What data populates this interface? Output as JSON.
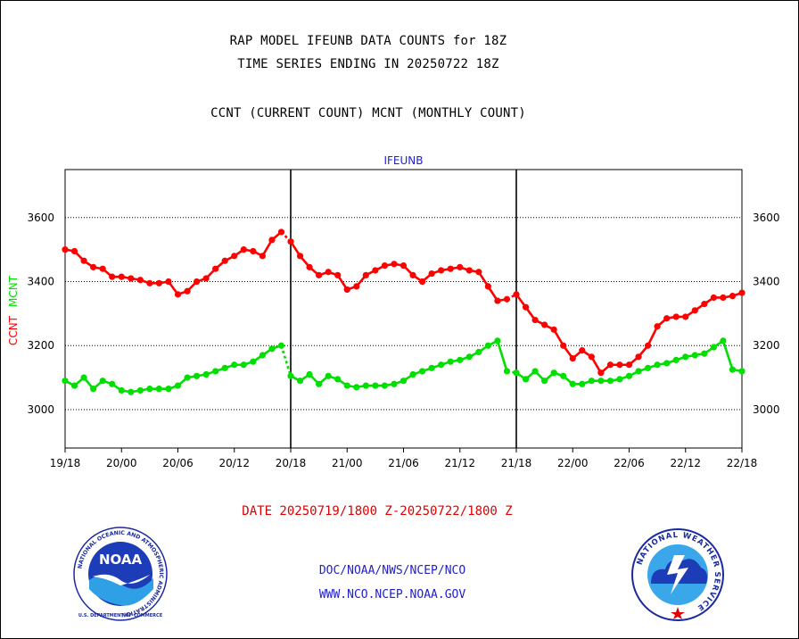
{
  "header": {
    "title_line1": "RAP MODEL IFEUNB DATA COUNTS for 18Z",
    "title_line2": "TIME SERIES ENDING IN 20250722 18Z",
    "subtitle": "CCNT (CURRENT COUNT) MCNT (MONTHLY COUNT)"
  },
  "footer": {
    "date_range": "DATE 20250719/1800 Z-20250722/1800 Z",
    "line1": "DOC/NOAA/NWS/NCEP/NCO",
    "line2": "WWW.NCO.NCEP.NOAA.GOV"
  },
  "logos": {
    "left": "noaa-logo",
    "left_label": "NOAA",
    "left_ring_text": "NATIONAL OCEANIC AND ATMOSPHERIC ADMINISTRATION",
    "left_bottom_text": "U.S. DEPARTMENT OF COMMERCE",
    "right": "nws-logo",
    "right_ring_text": "NATIONAL WEATHER SERVICE"
  },
  "colors": {
    "ccnt": "#ff0000",
    "mcnt": "#00e000",
    "footer_text": "#1e1ecc"
  },
  "chart_data": {
    "type": "line",
    "title": "IFEUNB",
    "ylabel_ccnt": "CCNT",
    "ylabel_mcnt": "MCNT",
    "ylim": [
      2880,
      3750
    ],
    "yticks": [
      3000,
      3200,
      3400,
      3600
    ],
    "grid": true,
    "xlim": [
      0,
      72
    ],
    "xticks": [
      {
        "x": 0,
        "label": "19/18"
      },
      {
        "x": 6,
        "label": "20/00"
      },
      {
        "x": 12,
        "label": "20/06"
      },
      {
        "x": 18,
        "label": "20/12"
      },
      {
        "x": 24,
        "label": "20/18"
      },
      {
        "x": 30,
        "label": "21/00"
      },
      {
        "x": 36,
        "label": "21/06"
      },
      {
        "x": 42,
        "label": "21/12"
      },
      {
        "x": 48,
        "label": "21/18"
      },
      {
        "x": 54,
        "label": "22/00"
      },
      {
        "x": 60,
        "label": "22/06"
      },
      {
        "x": 66,
        "label": "22/12"
      },
      {
        "x": 72,
        "label": "22/18"
      }
    ],
    "day_separators": [
      24,
      48
    ],
    "series": [
      {
        "name": "CCNT",
        "color": "#ff0000",
        "x": [
          0,
          1,
          2,
          3,
          4,
          5,
          6,
          7,
          8,
          9,
          10,
          11,
          12,
          13,
          14,
          15,
          16,
          17,
          18,
          19,
          20,
          21,
          22,
          23,
          24,
          25,
          26,
          27,
          28,
          29,
          30,
          31,
          32,
          33,
          34,
          35,
          36,
          37,
          38,
          39,
          40,
          41,
          42,
          43,
          44,
          45,
          46,
          47,
          48,
          49,
          50,
          51,
          52,
          53,
          54,
          55,
          56,
          57,
          58,
          59,
          60,
          61,
          62,
          63,
          64,
          65,
          66,
          67,
          68,
          69,
          70,
          71,
          72
        ],
        "values": [
          3500,
          3495,
          3465,
          3445,
          3440,
          3415,
          3415,
          3410,
          3405,
          3395,
          3395,
          3400,
          3360,
          3370,
          3400,
          3410,
          3440,
          3465,
          3480,
          3500,
          3495,
          3480,
          3530,
          3555,
          3525,
          3480,
          3445,
          3420,
          3430,
          3420,
          3375,
          3385,
          3420,
          3435,
          3450,
          3455,
          3450,
          3420,
          3400,
          3425,
          3435,
          3440,
          3445,
          3435,
          3430,
          3385,
          3340,
          3345,
          3360,
          3320,
          3280,
          3265,
          3250,
          3200,
          3160,
          3185,
          3165,
          3115,
          3140,
          3140,
          3140,
          3165,
          3200,
          3260,
          3285,
          3290,
          3290,
          3310,
          3330,
          3350,
          3350,
          3355,
          3365
        ]
      },
      {
        "name": "MCNT",
        "color": "#00e000",
        "x": [
          0,
          1,
          2,
          3,
          4,
          5,
          6,
          7,
          8,
          9,
          10,
          11,
          12,
          13,
          14,
          15,
          16,
          17,
          18,
          19,
          20,
          21,
          22,
          23,
          24,
          25,
          26,
          27,
          28,
          29,
          30,
          31,
          32,
          33,
          34,
          35,
          36,
          37,
          38,
          39,
          40,
          41,
          42,
          43,
          44,
          45,
          46,
          47,
          48,
          49,
          50,
          51,
          52,
          53,
          54,
          55,
          56,
          57,
          58,
          59,
          60,
          61,
          62,
          63,
          64,
          65,
          66,
          67,
          68,
          69,
          70,
          71,
          72
        ],
        "values": [
          3090,
          3075,
          3100,
          3065,
          3090,
          3080,
          3060,
          3055,
          3060,
          3065,
          3065,
          3065,
          3075,
          3100,
          3105,
          3110,
          3120,
          3130,
          3140,
          3140,
          3150,
          3170,
          3190,
          3200,
          3105,
          3090,
          3110,
          3080,
          3105,
          3095,
          3075,
          3070,
          3075,
          3075,
          3075,
          3080,
          3090,
          3110,
          3120,
          3130,
          3140,
          3150,
          3155,
          3165,
          3180,
          3200,
          3215,
          3120,
          3115,
          3095,
          3120,
          3090,
          3115,
          3105,
          3080,
          3080,
          3090,
          3090,
          3090,
          3095,
          3105,
          3120,
          3130,
          3140,
          3145,
          3155,
          3165,
          3170,
          3175,
          3195,
          3215,
          3125,
          3120
        ]
      }
    ]
  }
}
